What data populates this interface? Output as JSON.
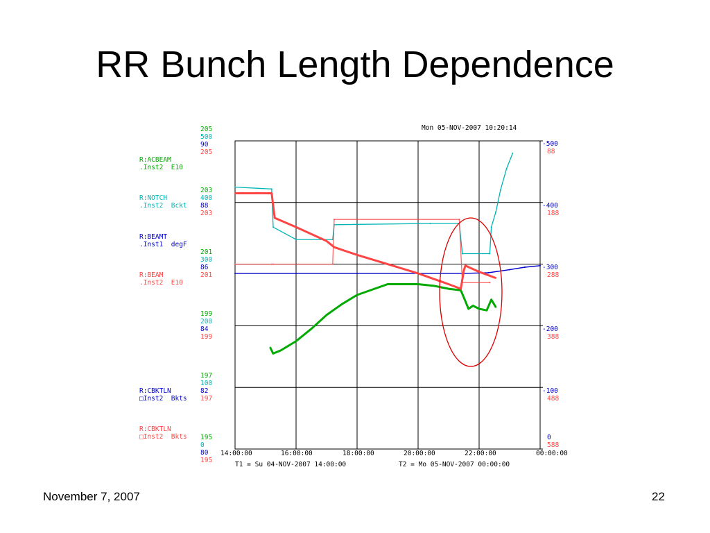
{
  "slide": {
    "title": "RR Bunch Length Dependence",
    "date": "November 7, 2007",
    "page": "22"
  },
  "colors": {
    "green": "#00aa00",
    "cyan": "#00b4b4",
    "blue": "#0000cc",
    "red": "#ff4444",
    "ellipse": "#dd0000"
  },
  "chart_data": {
    "type": "line",
    "timestamp": "Mon 05-NOV-2007 10:20:14",
    "t1_label": "T1 = Su 04-NOV-2007 14:00:00",
    "t2_label": "T2 = Mo 05-NOV-2007 00:00:00",
    "x_ticks": [
      "14:00:00",
      "16:00:00",
      "18:00:00",
      "20:00:00",
      "22:00:00",
      "00:00:00"
    ],
    "xlim_hours": [
      14,
      24
    ],
    "grid": true,
    "left_axes": [
      {
        "label": "R:ACBEAM",
        "units": ".Inst2  E10",
        "color": "green",
        "max": {
          "green": "205",
          "cyan": "500",
          "blue": "90",
          "red": "205"
        }
      },
      {
        "label": "R:NOTCH",
        "units": ".Inst2  Bckt",
        "color": "cyan",
        "max": {
          "green": "203",
          "cyan": "400",
          "blue": "88",
          "red": "203"
        }
      },
      {
        "label": "R:BEAMT",
        "units": ".Inst1  degF",
        "color": "blue",
        "max": {
          "green": "201",
          "cyan": "300",
          "blue": "86",
          "red": "201"
        }
      },
      {
        "label": "R:BEAM",
        "units": ".Inst2  E10",
        "color": "red",
        "max": {
          "green": "199",
          "cyan": "200",
          "blue": "84",
          "red": "199"
        }
      },
      {
        "label": "R:CBKTLN",
        "units": "□Inst2  Bkts",
        "color": "blue",
        "max": {
          "green": "197",
          "cyan": "100",
          "blue": "82",
          "red": "197"
        }
      },
      {
        "label": "R:CBKTLN",
        "units": "□Inst2  Bkts",
        "color": "red",
        "max": {
          "green": "195",
          "cyan": "0",
          "blue": "80",
          "red": "195"
        }
      }
    ],
    "right_axis_blue": [
      "-500",
      "-400",
      "-300",
      "-200",
      "-100",
      "0"
    ],
    "right_axis_red": [
      "88",
      "188",
      "288",
      "388",
      "488",
      "588"
    ],
    "series": [
      {
        "name": "R:ACBEAM",
        "color": "green",
        "ylim": [
          195,
          205
        ],
        "x": [
          15.15,
          15.25,
          15.5,
          16.0,
          16.5,
          17.0,
          17.5,
          18.0,
          19.0,
          20.0,
          20.5,
          21.0,
          21.4,
          21.55,
          21.65,
          21.8,
          22.0,
          22.25,
          22.4,
          22.55
        ],
        "y": [
          198.3,
          198.1,
          198.2,
          198.5,
          198.9,
          199.35,
          199.7,
          200.0,
          200.35,
          200.35,
          200.3,
          200.2,
          200.15,
          199.8,
          199.55,
          199.65,
          199.55,
          199.5,
          199.85,
          199.6
        ]
      },
      {
        "name": "R:NOTCH",
        "color": "cyan",
        "ylim": [
          0,
          500
        ],
        "x": [
          14.0,
          15.2,
          15.25,
          16.0,
          17.2,
          17.25,
          20.4,
          21.35,
          21.45,
          22.35,
          22.4,
          22.55,
          22.7,
          22.9,
          23.1
        ],
        "y": [
          425,
          422,
          360,
          340,
          340,
          364,
          366,
          366,
          317,
          317,
          360,
          385,
          420,
          455,
          480
        ]
      },
      {
        "name": "R:BEAMT",
        "color": "blue",
        "ylim": [
          80,
          90
        ],
        "x": [
          14.0,
          16.0,
          18.0,
          20.0,
          21.5,
          22.3,
          23.0,
          23.5,
          24.0
        ],
        "y": [
          85.7,
          85.7,
          85.7,
          85.7,
          85.7,
          85.72,
          85.82,
          85.9,
          85.95
        ]
      },
      {
        "name": "R:BEAM",
        "color": "red",
        "ylim": [
          195,
          205
        ],
        "x": [
          14.0,
          15.2,
          15.3,
          16.0,
          17.0,
          17.25,
          18.0,
          19.0,
          20.0,
          21.0,
          21.4,
          21.5,
          21.55,
          22.0,
          22.55
        ],
        "y": [
          203.3,
          203.3,
          202.5,
          202.2,
          201.75,
          201.55,
          201.3,
          201.0,
          200.7,
          200.35,
          200.2,
          200.8,
          200.95,
          200.75,
          200.55
        ]
      },
      {
        "name": "R:CBKTLN",
        "color": "red",
        "ylim": [
          195,
          205
        ],
        "x": [
          14.0,
          15.2,
          15.25,
          17.2,
          17.25,
          21.35,
          21.45,
          22.35
        ],
        "y": [
          201.0,
          201.0,
          201.0,
          201.0,
          202.45,
          202.45,
          200.4,
          200.4
        ]
      }
    ]
  }
}
